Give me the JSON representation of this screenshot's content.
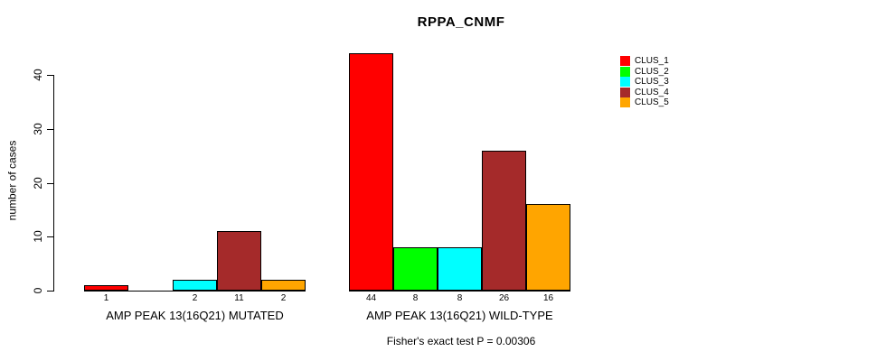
{
  "chart_data": {
    "type": "bar",
    "title": "RPPA_CNMF",
    "ylabel": "number of cases",
    "xlabel": "",
    "yticks": [
      0,
      10,
      20,
      30,
      40
    ],
    "ylim": [
      0,
      44
    ],
    "grid": false,
    "legend_position": "right",
    "legend": [
      {
        "label": "CLUS_1",
        "color": "#FF0000"
      },
      {
        "label": "CLUS_2",
        "color": "#00FF00"
      },
      {
        "label": "CLUS_3",
        "color": "#00FFFF"
      },
      {
        "label": "CLUS_4",
        "color": "#A52A2A"
      },
      {
        "label": "CLUS_5",
        "color": "#FFA500"
      }
    ],
    "groups": [
      {
        "label": "AMP PEAK 13(16Q21) MUTATED",
        "values": [
          1,
          0,
          2,
          11,
          2
        ],
        "bar_labels": [
          "1",
          "",
          "2",
          "11",
          "2"
        ]
      },
      {
        "label": "AMP PEAK 13(16Q21) WILD-TYPE",
        "values": [
          44,
          8,
          8,
          26,
          16
        ],
        "bar_labels": [
          "44",
          "8",
          "8",
          "26",
          "16"
        ]
      }
    ],
    "footnote": "Fisher's exact test P = 0.00306",
    "axis_color": "#000000",
    "background_color": "#FFFFFF"
  }
}
